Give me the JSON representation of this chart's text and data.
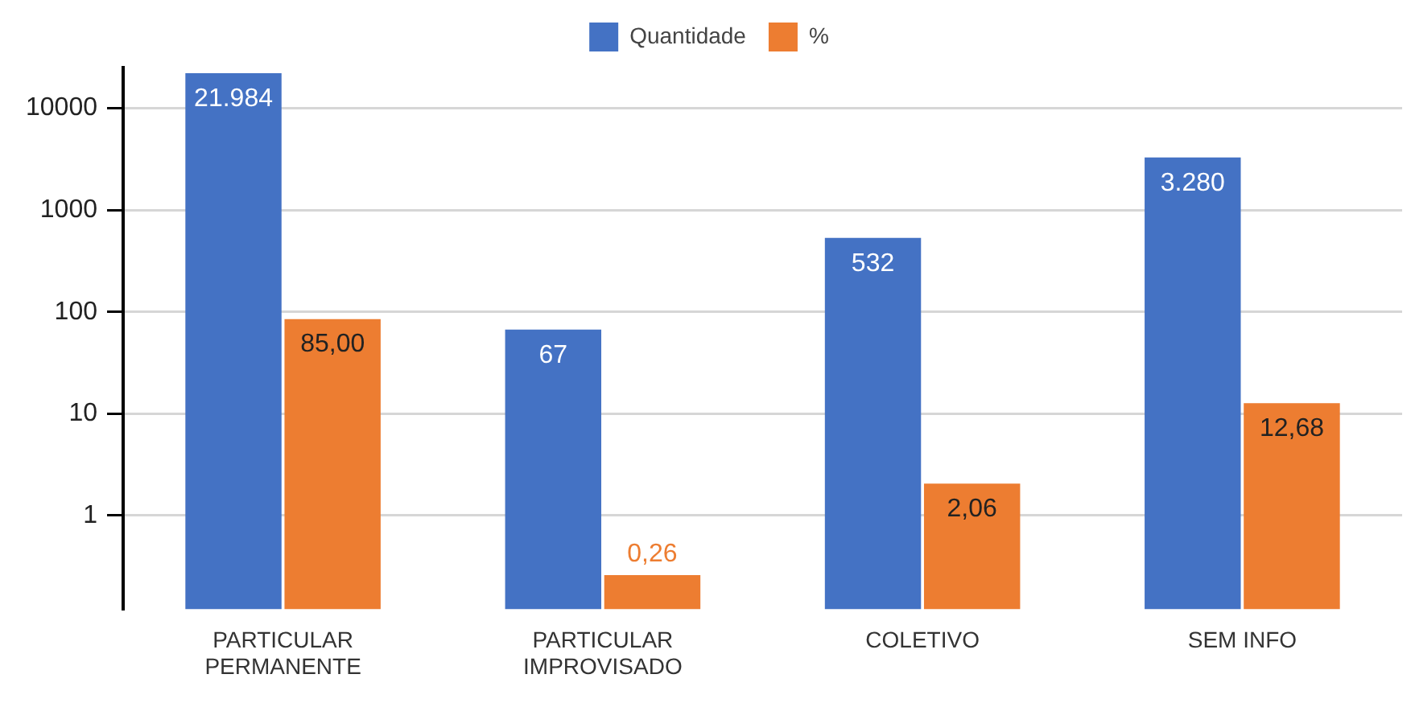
{
  "chart_data": {
    "type": "bar",
    "categories": [
      "PARTICULAR PERMANENTE",
      "PARTICULAR IMPROVISADO",
      "COLETIVO",
      "SEM INFO"
    ],
    "series": [
      {
        "name": "Quantidade",
        "color": "#4472c4",
        "values": [
          21984,
          67,
          532,
          3280
        ],
        "value_labels": [
          "21.984",
          "67",
          "532",
          "3.280"
        ]
      },
      {
        "name": "%",
        "color": "#ed7d31",
        "values": [
          85.0,
          0.26,
          2.06,
          12.68
        ],
        "value_labels": [
          "85,00",
          "0,26",
          "2,06",
          "12,68"
        ]
      }
    ],
    "log": true,
    "ylim": [
      0.12,
      25000
    ],
    "yticks": [
      1,
      10,
      100,
      1000,
      10000
    ],
    "grid": "y",
    "legend": "top"
  }
}
